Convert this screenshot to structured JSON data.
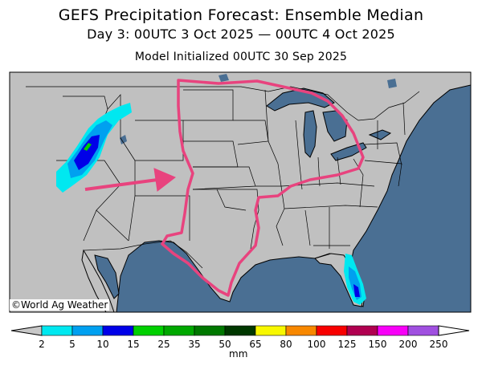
{
  "title": "GEFS Precipitation Forecast: Ensemble Median",
  "subtitle": "Day 3: 00UTC 3 Oct 2025 — 00UTC 4 Oct 2025",
  "init_line": "Model Initialized 00UTC 30 Sep 2025",
  "credit": "©World Ag Weather",
  "colorbar": {
    "units": "mm",
    "ticks": [
      "2",
      "5",
      "10",
      "15",
      "25",
      "35",
      "50",
      "65",
      "80",
      "100",
      "125",
      "150",
      "200",
      "250"
    ],
    "colors": [
      "#00e8f0",
      "#00a0f0",
      "#0000e8",
      "#00d000",
      "#00a800",
      "#007800",
      "#003800",
      "#f8f800",
      "#f88800",
      "#f80000",
      "#b00050",
      "#f800f8",
      "#a050e0"
    ],
    "under_color": "#c8c8c8",
    "over_color": "#ffffff"
  },
  "annotation": {
    "outline_color": "#e8437e",
    "arrow_color": "#e8437e"
  },
  "map_colors": {
    "land": "#c0c0c0",
    "water": "#4a6f93",
    "borders": "#000000"
  }
}
